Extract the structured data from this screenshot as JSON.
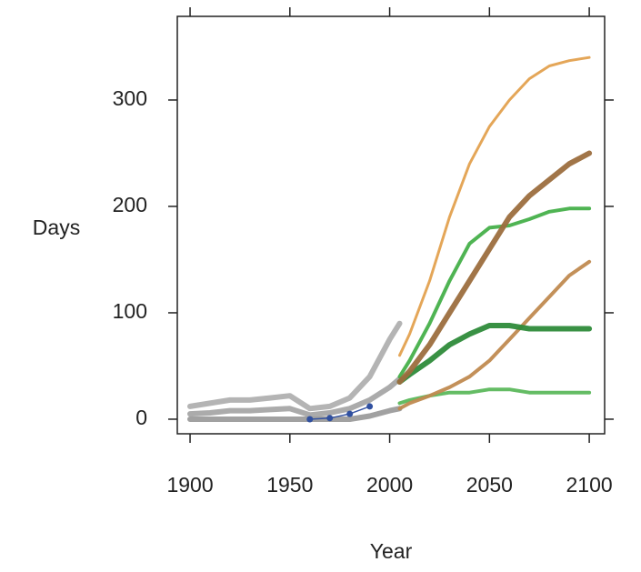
{
  "chart_data": {
    "type": "line",
    "x_label": "Year",
    "y_label": "Days",
    "x": [
      1900,
      1910,
      1920,
      1930,
      1940,
      1950,
      1960,
      1970,
      1980,
      1990,
      2000,
      2005,
      2010,
      2020,
      2030,
      2040,
      2050,
      2060,
      2070,
      2080,
      2090,
      2100
    ],
    "xlim": [
      1893.6,
      2107.7
    ],
    "xticks": [
      1900,
      1950,
      2000,
      2050,
      2100
    ],
    "ylim": [
      -13.7,
      378.6
    ],
    "yticks": [
      0,
      100,
      200,
      300
    ],
    "series": [
      {
        "color": "#b0b0b0",
        "width": 6,
        "values": [
          12,
          15,
          18,
          18,
          20,
          22,
          10,
          12,
          20,
          40,
          75,
          90,
          null,
          null,
          null,
          null,
          null,
          null,
          null,
          null,
          null,
          null
        ]
      },
      {
        "color": "#a6a6a6",
        "width": 6,
        "values": [
          5,
          6,
          8,
          8,
          9,
          10,
          4,
          6,
          10,
          18,
          30,
          38,
          null,
          null,
          null,
          null,
          null,
          null,
          null,
          null,
          null,
          null
        ]
      },
      {
        "color": "#9c9c9c",
        "width": 6,
        "values": [
          0,
          0,
          0,
          0,
          0,
          0,
          0,
          0,
          0,
          3,
          8,
          10,
          null,
          null,
          null,
          null,
          null,
          null,
          null,
          null,
          null,
          null
        ]
      },
      {
        "color": "#3050a0",
        "width": 1.5,
        "markers": true,
        "values": [
          null,
          null,
          null,
          null,
          null,
          null,
          0,
          1,
          5,
          12,
          null,
          null,
          null,
          null,
          null,
          null,
          null,
          null,
          null,
          null,
          null,
          null
        ]
      },
      {
        "color": "#5cb85c",
        "width": 4,
        "values": [
          null,
          null,
          null,
          null,
          null,
          null,
          null,
          null,
          null,
          null,
          null,
          15,
          18,
          22,
          25,
          25,
          28,
          28,
          25,
          25,
          25,
          25
        ]
      },
      {
        "color": "#46b04a",
        "width": 4,
        "values": [
          null,
          null,
          null,
          null,
          null,
          null,
          null,
          null,
          null,
          null,
          null,
          40,
          55,
          90,
          130,
          165,
          180,
          182,
          188,
          195,
          198,
          198
        ]
      },
      {
        "color": "#e3a14f",
        "width": 3,
        "values": [
          null,
          null,
          null,
          null,
          null,
          null,
          null,
          null,
          null,
          null,
          null,
          60,
          80,
          130,
          190,
          240,
          275,
          300,
          320,
          332,
          337,
          340
        ]
      },
      {
        "color": "#c08a50",
        "width": 4,
        "values": [
          null,
          null,
          null,
          null,
          null,
          null,
          null,
          null,
          null,
          null,
          null,
          10,
          15,
          22,
          30,
          40,
          55,
          75,
          95,
          115,
          135,
          148
        ]
      },
      {
        "color": "#2e8b3a",
        "width": 6,
        "values": [
          null,
          null,
          null,
          null,
          null,
          null,
          null,
          null,
          null,
          null,
          null,
          35,
          42,
          55,
          70,
          80,
          88,
          88,
          85,
          85,
          85,
          85
        ]
      },
      {
        "color": "#9c6e3e",
        "width": 6,
        "values": [
          null,
          null,
          null,
          null,
          null,
          null,
          null,
          null,
          null,
          null,
          null,
          35,
          45,
          70,
          100,
          130,
          160,
          190,
          210,
          225,
          240,
          250
        ]
      }
    ]
  }
}
